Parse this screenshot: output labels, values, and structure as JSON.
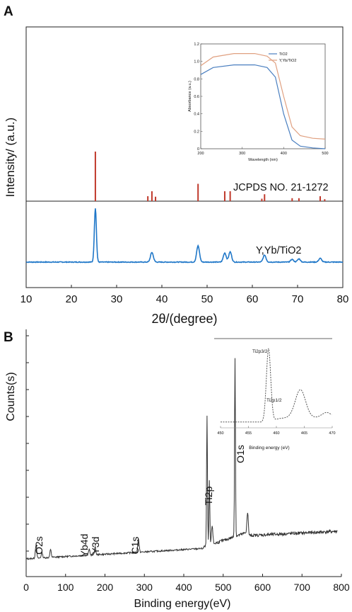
{
  "panels": {
    "A": {
      "label": "A"
    },
    "B": {
      "label": "B"
    }
  },
  "colors": {
    "xrd_series": "#1f77c8",
    "ref_sticks": "#c0392b",
    "inset_tio2": "#4a7fc0",
    "inset_doped": "#e0a080",
    "axes": "#222222"
  },
  "chart_data": [
    {
      "type": "line",
      "panel": "A",
      "xlabel": "2θ/(degree)",
      "ylabel": "Intensity/ (a.u.)",
      "xlim": [
        10,
        80
      ],
      "xticks": [
        "10",
        "20",
        "30",
        "40",
        "50",
        "60",
        "70",
        "80"
      ],
      "reference_label": "JCPDS NO. 21-1272",
      "series_label": "Y,Yb/TiO2",
      "reference_sticks": [
        {
          "x": 25.3,
          "h": 100
        },
        {
          "x": 36.9,
          "h": 10
        },
        {
          "x": 37.8,
          "h": 20
        },
        {
          "x": 38.6,
          "h": 9
        },
        {
          "x": 48.0,
          "h": 35
        },
        {
          "x": 53.9,
          "h": 20
        },
        {
          "x": 55.1,
          "h": 20
        },
        {
          "x": 62.1,
          "h": 5
        },
        {
          "x": 62.7,
          "h": 14
        },
        {
          "x": 68.8,
          "h": 6
        },
        {
          "x": 70.3,
          "h": 6
        },
        {
          "x": 75.0,
          "h": 10
        },
        {
          "x": 76.0,
          "h": 4
        }
      ],
      "series": [
        {
          "name": "Y,Yb/TiO2",
          "peaks": [
            {
              "x": 25.3,
              "h": 100
            },
            {
              "x": 37.8,
              "h": 18
            },
            {
              "x": 48.0,
              "h": 30
            },
            {
              "x": 53.9,
              "h": 17
            },
            {
              "x": 55.1,
              "h": 19
            },
            {
              "x": 62.7,
              "h": 13
            },
            {
              "x": 68.8,
              "h": 5
            },
            {
              "x": 70.3,
              "h": 6
            },
            {
              "x": 75.0,
              "h": 7
            }
          ]
        }
      ]
    },
    {
      "type": "line",
      "panel": "A-inset",
      "xlabel": "Wavelength (nm)",
      "ylabel": "Absorbance (a.u.)",
      "xlim": [
        200,
        500
      ],
      "ylim": [
        0,
        1.2
      ],
      "xticks": [
        "200",
        "300",
        "400",
        "500"
      ],
      "yticks": [
        "0",
        "0.2",
        "0.4",
        "0.6",
        "0.8",
        "1.0",
        "1.2"
      ],
      "series": [
        {
          "name": "TiO2",
          "x": [
            200,
            230,
            280,
            330,
            360,
            380,
            400,
            420,
            440,
            470,
            500
          ],
          "y": [
            0.85,
            0.93,
            0.96,
            0.96,
            0.93,
            0.82,
            0.4,
            0.1,
            0.03,
            0.01,
            0.0
          ]
        },
        {
          "name": "Y,Yb/TiO2",
          "x": [
            200,
            230,
            280,
            330,
            360,
            380,
            400,
            420,
            440,
            470,
            500
          ],
          "y": [
            0.95,
            1.05,
            1.09,
            1.09,
            1.06,
            0.98,
            0.6,
            0.25,
            0.15,
            0.12,
            0.11
          ]
        }
      ]
    },
    {
      "type": "line",
      "panel": "B",
      "xlabel": "Binding energy(eV)",
      "ylabel": "Counts(s)",
      "xlim": [
        0,
        800
      ],
      "xticks": [
        "0",
        "100",
        "200",
        "300",
        "400",
        "500",
        "600",
        "700",
        "800"
      ],
      "annotations": [
        {
          "text": "O2s",
          "x": 25
        },
        {
          "text": "Yb4d",
          "x": 160
        },
        {
          "text": "Y3d",
          "x": 175
        },
        {
          "text": "C1s",
          "x": 285
        },
        {
          "text": "Ti2p",
          "x": 459
        },
        {
          "text": "O1s",
          "x": 530
        }
      ],
      "peaks": [
        {
          "x": 25,
          "h": 7
        },
        {
          "x": 40,
          "h": 3
        },
        {
          "x": 62,
          "h": 4
        },
        {
          "x": 160,
          "h": 3
        },
        {
          "x": 175,
          "h": 4
        },
        {
          "x": 285,
          "h": 7
        },
        {
          "x": 459,
          "h": 67
        },
        {
          "x": 465,
          "h": 33
        },
        {
          "x": 472,
          "h": 10
        },
        {
          "x": 530,
          "h": 93
        },
        {
          "x": 562,
          "h": 12
        }
      ]
    },
    {
      "type": "line",
      "panel": "B-inset",
      "xlabel": "Binding energy (eV)",
      "xlim": [
        450,
        470
      ],
      "xticks": [
        "450",
        "455",
        "460",
        "465",
        "470"
      ],
      "annotations": [
        {
          "text": "Ti2p3/2",
          "x": 458.6
        },
        {
          "text": "Ti2p1/2",
          "x": 464.3
        }
      ],
      "series": [
        {
          "name": "Ti2p",
          "peaks": [
            {
              "x": 458.6,
              "h": 100
            },
            {
              "x": 464.3,
              "h": 38
            }
          ]
        }
      ]
    }
  ]
}
